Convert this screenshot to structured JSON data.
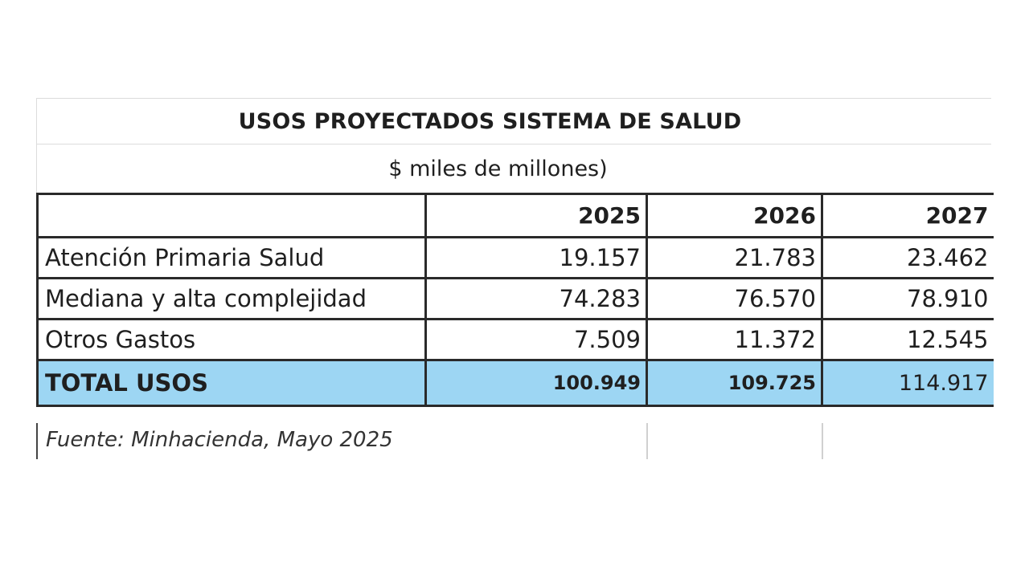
{
  "table": {
    "title": "USOS PROYECTADOS SISTEMA DE SALUD",
    "subtitle": "$  miles de millones)",
    "years": [
      "2025",
      "2026",
      "2027"
    ],
    "rows": [
      {
        "label": "Atención Primaria Salud",
        "values": [
          "19.157",
          "21.783",
          "23.462"
        ]
      },
      {
        "label": "Mediana y alta complejidad",
        "values": [
          "74.283",
          "76.570",
          "78.910"
        ]
      },
      {
        "label": "Otros Gastos",
        "values": [
          "7.509",
          "11.372",
          "12.545"
        ]
      }
    ],
    "total": {
      "label": "TOTAL USOS",
      "values": [
        "100.949",
        "109.725",
        "114.917"
      ]
    },
    "source": "Fuente: Minhacienda, Mayo 2025",
    "total_highlight_color": "#9dd6f3"
  }
}
